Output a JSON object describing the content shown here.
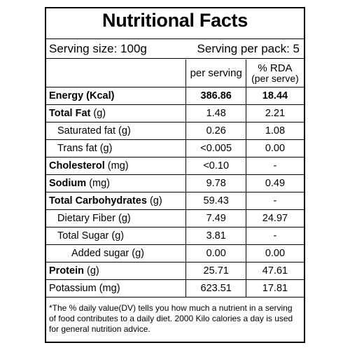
{
  "title": "Nutritional Facts",
  "serving_size": "Serving size: 100g",
  "serving_per_pack": "Serving per pack: 5",
  "columns": {
    "per_serving": "per serving",
    "rda_top": "% RDA",
    "rda_bottom": "(per serve)"
  },
  "rows": [
    {
      "name": "Energy (Kcal)",
      "per_serving": "386.86",
      "rda": "18.44"
    },
    {
      "name": "Total Fat",
      "unit": "(g)",
      "per_serving": "1.48",
      "rda": "2.21"
    },
    {
      "name": "Saturated fat (g)",
      "per_serving": "0.26",
      "rda": "1.08"
    },
    {
      "name": "Trans fat (g)",
      "per_serving": "<0.005",
      "rda": "0.00"
    },
    {
      "name": "Cholesterol",
      "unit": "(mg)",
      "per_serving": "<0.10",
      "rda": "-"
    },
    {
      "name": "Sodium",
      "unit": "(mg)",
      "per_serving": "9.78",
      "rda": "0.49"
    },
    {
      "name": "Total Carbohydrates",
      "unit": "(g)",
      "per_serving": "59.43",
      "rda": "-"
    },
    {
      "name": "Dietary Fiber (g)",
      "per_serving": "7.49",
      "rda": "24.97"
    },
    {
      "name": "Total Sugar (g)",
      "per_serving": "3.81",
      "rda": "-"
    },
    {
      "name": "Added sugar (g)",
      "per_serving": "0.00",
      "rda": "0.00"
    },
    {
      "name": "Protein",
      "unit": "(g)",
      "per_serving": "25.71",
      "rda": "47.61"
    },
    {
      "name": "Potassium (mg)",
      "per_serving": "623.51",
      "rda": "17.81"
    }
  ],
  "footnote": "*The % daily value(DV) tells you how much a nutrient in a serving of food contributes to a daily diet. 2000 Kilo calories a day is used for general nutrition advice."
}
